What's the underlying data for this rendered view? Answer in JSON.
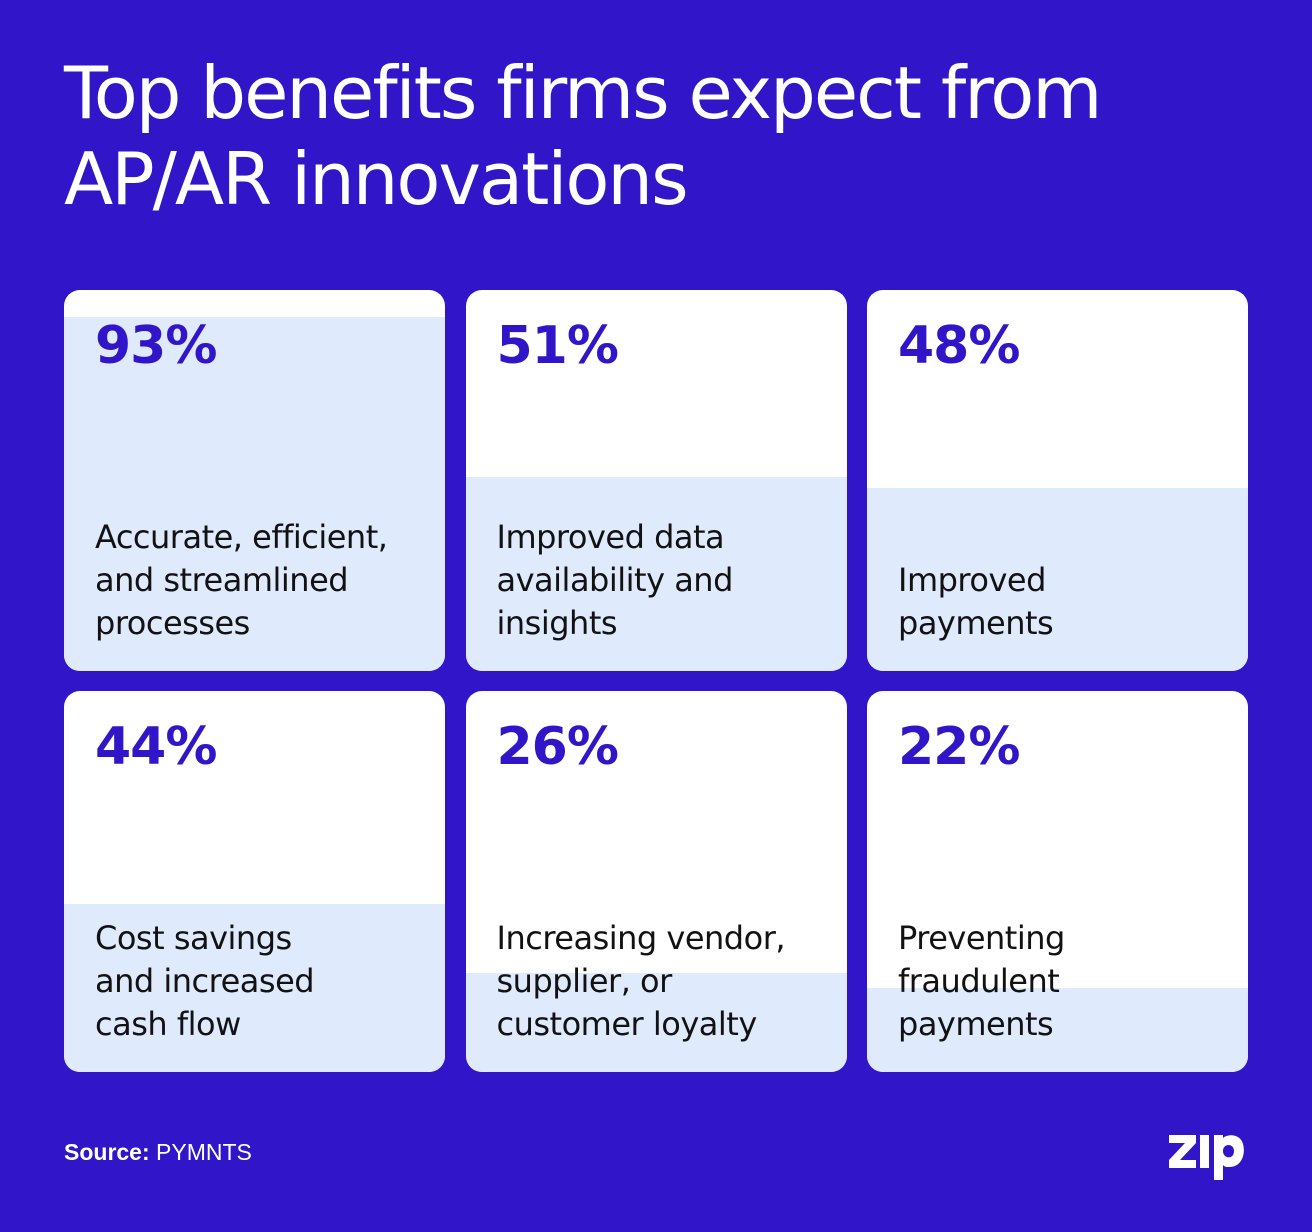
{
  "title": "Top benefits firms expect from AP/AR innovations",
  "chart_data": {
    "type": "bar",
    "title": "Top benefits firms expect from AP/AR innovations",
    "categories": [
      "Accurate, efficient, and streamlined processes",
      "Improved data availability and insights",
      "Improved payments",
      "Cost savings and increased cash flow",
      "Increasing vendor, supplier, or customer loyalty",
      "Preventing fraudulent payments"
    ],
    "values": [
      93,
      51,
      48,
      44,
      26,
      22
    ],
    "value_labels": [
      "93%",
      "51%",
      "48%",
      "44%",
      "26%",
      "22%"
    ],
    "unit": "%",
    "ylim": [
      0,
      100
    ]
  },
  "cards": [
    {
      "pct": "93%",
      "label": "Accurate, efficient,\nand streamlined\nprocesses"
    },
    {
      "pct": "51%",
      "label": "Improved data\navailability and\ninsights"
    },
    {
      "pct": "48%",
      "label": "Improved\npayments"
    },
    {
      "pct": "44%",
      "label": "Cost savings\nand increased\ncash flow"
    },
    {
      "pct": "26%",
      "label": "Increasing vendor,\nsupplier, or\ncustomer loyalty"
    },
    {
      "pct": "22%",
      "label": "Preventing\nfraudulent\npayments"
    }
  ],
  "source": {
    "key": "Source:",
    "value": "PYMNTS"
  },
  "logo": {
    "text": "Zip"
  },
  "colors": {
    "background": "#3016c8",
    "card": "#ffffff",
    "fill": "#dfeafd",
    "percent": "#3016c8",
    "label": "#121212"
  }
}
